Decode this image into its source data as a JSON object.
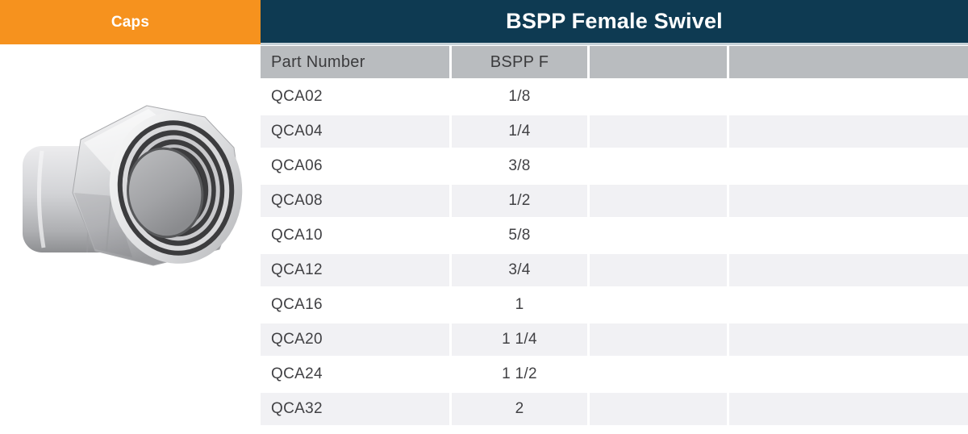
{
  "category_tab": {
    "label": "Caps"
  },
  "header": {
    "title": "BSPP Female Swivel"
  },
  "product_image": {
    "name": "cap-fitting-photo",
    "description": "steel BSPP female swivel cap fitting"
  },
  "colors": {
    "accent_orange": "#F6921E",
    "navy": "#0E3A52",
    "header_cell_gray": "#B9BCBF",
    "alt_row_gray": "#F1F1F4",
    "body_text": "#414144"
  },
  "table": {
    "columns": [
      "Part Number",
      "BSPP F",
      "",
      ""
    ],
    "rows": [
      {
        "part_number": "QCA02",
        "bspp_f": "1/8"
      },
      {
        "part_number": "QCA04",
        "bspp_f": "1/4"
      },
      {
        "part_number": "QCA06",
        "bspp_f": "3/8"
      },
      {
        "part_number": "QCA08",
        "bspp_f": "1/2"
      },
      {
        "part_number": "QCA10",
        "bspp_f": "5/8"
      },
      {
        "part_number": "QCA12",
        "bspp_f": "3/4"
      },
      {
        "part_number": "QCA16",
        "bspp_f": "1"
      },
      {
        "part_number": "QCA20",
        "bspp_f": "1 1/4"
      },
      {
        "part_number": "QCA24",
        "bspp_f": "1 1/2"
      },
      {
        "part_number": "QCA32",
        "bspp_f": "2"
      }
    ]
  }
}
